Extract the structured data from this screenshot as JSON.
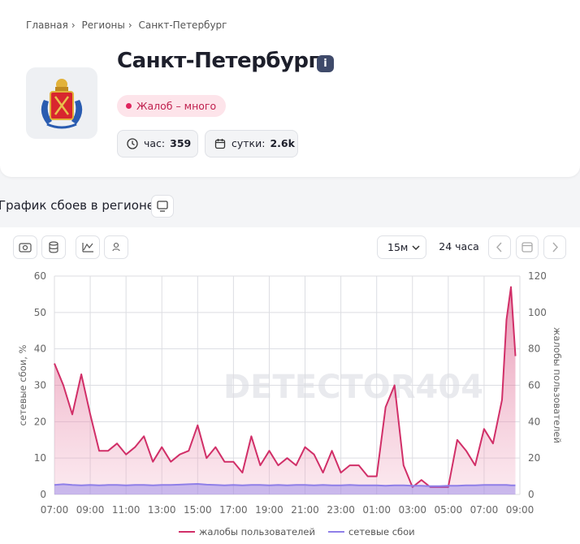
{
  "breadcrumbs": [
    "Главная",
    "Регионы",
    "Санкт-Петербург"
  ],
  "header": {
    "title": "Санкт-Петербург",
    "badge": "Жалоб – много",
    "stats": [
      {
        "label": "час:",
        "value": "359"
      },
      {
        "label": "сутки:",
        "value": "2.6k"
      }
    ]
  },
  "section_title": "График сбоев в регионе",
  "toolbar": {
    "interval": "15м",
    "range": "24 часа"
  },
  "chart_data": {
    "type": "line",
    "watermark": "DETECTOR404",
    "ylabel": "сетевые сбои, %",
    "y2label": "жалобы пользователей",
    "ylim": [
      0,
      60
    ],
    "yticks": [
      0,
      10,
      20,
      30,
      40,
      50,
      60
    ],
    "y2lim": [
      0,
      120
    ],
    "y2ticks": [
      0,
      20,
      40,
      60,
      80,
      100,
      120
    ],
    "xticks": [
      "07:00",
      "09:00",
      "11:00",
      "13:00",
      "15:00",
      "17:00",
      "19:00",
      "21:00",
      "23:00",
      "01:00",
      "03:00",
      "05:00",
      "07:00",
      "09:00"
    ],
    "grid": true,
    "x": [
      "07:00",
      "07:30",
      "08:00",
      "08:30",
      "09:00",
      "09:30",
      "10:00",
      "10:30",
      "11:00",
      "11:30",
      "12:00",
      "12:30",
      "13:00",
      "13:30",
      "14:00",
      "14:30",
      "15:00",
      "15:30",
      "16:00",
      "16:30",
      "17:00",
      "17:30",
      "18:00",
      "18:30",
      "19:00",
      "19:30",
      "20:00",
      "20:30",
      "21:00",
      "21:30",
      "22:00",
      "22:30",
      "23:00",
      "23:30",
      "00:00",
      "00:30",
      "01:00",
      "01:30",
      "02:00",
      "02:30",
      "03:00",
      "03:30",
      "04:00",
      "04:30",
      "05:00",
      "05:30",
      "06:00",
      "06:30",
      "07:00",
      "07:30",
      "08:00",
      "08:15",
      "08:30",
      "08:45"
    ],
    "series": [
      {
        "name": "жалобы пользователей",
        "color": "#d12f68",
        "axis": "y2",
        "values": [
          72,
          60,
          44,
          66,
          44,
          24,
          24,
          28,
          22,
          26,
          32,
          18,
          26,
          18,
          22,
          24,
          38,
          20,
          26,
          18,
          18,
          12,
          32,
          16,
          24,
          16,
          20,
          16,
          26,
          22,
          12,
          24,
          12,
          16,
          16,
          10,
          10,
          48,
          60,
          16,
          4,
          8,
          4,
          4,
          4,
          30,
          24,
          16,
          36,
          28,
          52,
          96,
          114,
          76
        ]
      },
      {
        "name": "сетевые сбои",
        "color": "#8f7fe8",
        "values": [
          2.6,
          2.8,
          2.6,
          2.5,
          2.6,
          2.5,
          2.6,
          2.6,
          2.5,
          2.6,
          2.6,
          2.5,
          2.6,
          2.6,
          2.7,
          2.8,
          2.9,
          2.7,
          2.6,
          2.5,
          2.6,
          2.5,
          2.6,
          2.6,
          2.5,
          2.6,
          2.5,
          2.6,
          2.6,
          2.5,
          2.6,
          2.5,
          2.5,
          2.6,
          2.5,
          2.5,
          2.5,
          2.4,
          2.5,
          2.5,
          2.4,
          2.4,
          2.3,
          2.3,
          2.4,
          2.4,
          2.5,
          2.5,
          2.6,
          2.6,
          2.6,
          2.6,
          2.5,
          2.5
        ]
      }
    ]
  }
}
